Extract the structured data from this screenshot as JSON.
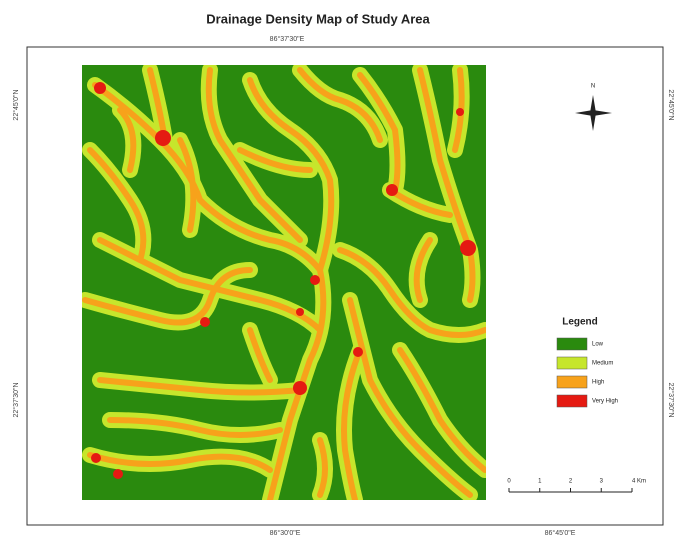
{
  "title": "Drainage Density Map of Study Area",
  "coordinates": {
    "top": "86°37'30\"E",
    "bottom_left": "86°30'0\"E",
    "bottom_right": "86°45'0\"E",
    "left_top": "22°45'0\"N",
    "left_bottom": "22°37'30\"N",
    "right_top": "22°45'0\"N",
    "right_bottom": "22°37'30\"N"
  },
  "north_label": "N",
  "legend": {
    "title": "Legend",
    "items": [
      {
        "name": "Low",
        "color": "#2a8a0e"
      },
      {
        "name": "Medium",
        "color": "#c6e62c"
      },
      {
        "name": "High",
        "color": "#f7a21b"
      },
      {
        "name": "Very High",
        "color": "#e51a12"
      }
    ]
  },
  "scale_bar": {
    "labels": [
      "0",
      "1",
      "2",
      "3",
      "4 Km"
    ]
  }
}
